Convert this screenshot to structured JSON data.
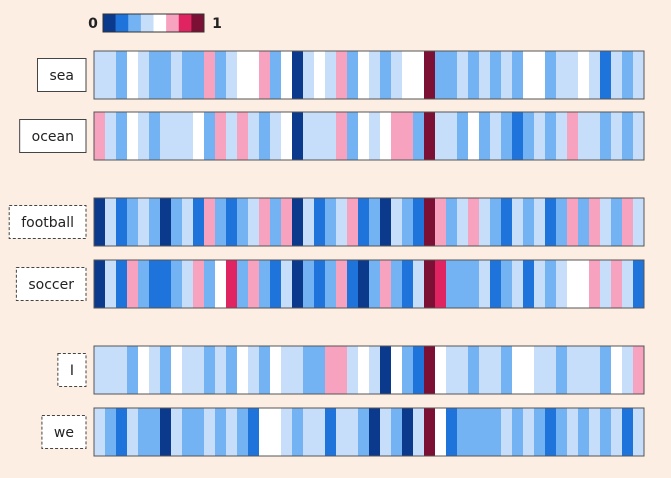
{
  "chart_data": {
    "type": "heatmap",
    "clim": [
      0,
      1
    ],
    "cticks": [
      0,
      1
    ],
    "colors": [
      "#0b3a8c",
      "#1f74dc",
      "#73b3f3",
      "#c6defa",
      "#ffffff",
      "#f7a3c0",
      "#e02462",
      "#7b1034"
    ],
    "series": [
      {
        "name": "sea",
        "values": [
          0.44,
          0.44,
          0.31,
          0.56,
          0.44,
          0.31,
          0.31,
          0.44,
          0.31,
          0.31,
          0.69,
          0.31,
          0.44,
          0.56,
          0.56,
          0.69,
          0.31,
          0.56,
          0.06,
          0.44,
          0.56,
          0.44,
          0.69,
          0.31,
          0.56,
          0.44,
          0.31,
          0.44,
          0.56,
          0.56,
          0.94,
          0.31,
          0.31,
          0.44,
          0.31,
          0.44,
          0.31,
          0.44,
          0.31,
          0.56,
          0.56,
          0.31,
          0.44,
          0.44,
          0.56,
          0.44,
          0.19,
          0.44,
          0.31,
          0.44
        ]
      },
      {
        "name": "ocean",
        "values": [
          0.69,
          0.44,
          0.31,
          0.56,
          0.44,
          0.31,
          0.44,
          0.44,
          0.44,
          0.56,
          0.31,
          0.69,
          0.44,
          0.69,
          0.44,
          0.31,
          0.44,
          0.56,
          0.06,
          0.44,
          0.44,
          0.44,
          0.69,
          0.31,
          0.56,
          0.44,
          0.56,
          0.69,
          0.69,
          0.31,
          0.94,
          0.44,
          0.44,
          0.31,
          0.56,
          0.31,
          0.44,
          0.31,
          0.19,
          0.31,
          0.44,
          0.31,
          0.44,
          0.69,
          0.44,
          0.44,
          0.31,
          0.44,
          0.31,
          0.44
        ]
      },
      {
        "name": "football",
        "values": [
          0.06,
          0.44,
          0.19,
          0.31,
          0.44,
          0.31,
          0.06,
          0.31,
          0.44,
          0.19,
          0.69,
          0.31,
          0.19,
          0.31,
          0.44,
          0.69,
          0.31,
          0.69,
          0.06,
          0.44,
          0.19,
          0.31,
          0.44,
          0.69,
          0.19,
          0.31,
          0.06,
          0.44,
          0.31,
          0.19,
          0.94,
          0.69,
          0.31,
          0.44,
          0.69,
          0.44,
          0.31,
          0.19,
          0.44,
          0.31,
          0.44,
          0.19,
          0.31,
          0.69,
          0.31,
          0.69,
          0.44,
          0.31,
          0.69,
          0.44
        ]
      },
      {
        "name": "soccer",
        "values": [
          0.06,
          0.44,
          0.19,
          0.69,
          0.31,
          0.19,
          0.19,
          0.31,
          0.44,
          0.69,
          0.31,
          0.56,
          0.81,
          0.31,
          0.69,
          0.31,
          0.19,
          0.44,
          0.06,
          0.31,
          0.19,
          0.31,
          0.69,
          0.19,
          0.06,
          0.31,
          0.69,
          0.31,
          0.19,
          0.44,
          0.94,
          0.81,
          0.31,
          0.31,
          0.31,
          0.44,
          0.19,
          0.31,
          0.44,
          0.19,
          0.44,
          0.31,
          0.44,
          0.56,
          0.56,
          0.69,
          0.44,
          0.69,
          0.44,
          0.19
        ]
      },
      {
        "name": "I",
        "values": [
          0.44,
          0.44,
          0.44,
          0.31,
          0.56,
          0.44,
          0.31,
          0.56,
          0.44,
          0.44,
          0.31,
          0.44,
          0.31,
          0.56,
          0.44,
          0.31,
          0.56,
          0.44,
          0.44,
          0.31,
          0.31,
          0.69,
          0.69,
          0.44,
          0.56,
          0.44,
          0.06,
          0.56,
          0.31,
          0.19,
          0.94,
          0.56,
          0.44,
          0.44,
          0.31,
          0.44,
          0.44,
          0.31,
          0.56,
          0.56,
          0.44,
          0.44,
          0.31,
          0.44,
          0.44,
          0.44,
          0.31,
          0.56,
          0.44,
          0.69
        ]
      },
      {
        "name": "we",
        "values": [
          0.44,
          0.31,
          0.19,
          0.44,
          0.31,
          0.31,
          0.06,
          0.44,
          0.31,
          0.31,
          0.44,
          0.31,
          0.44,
          0.31,
          0.19,
          0.56,
          0.56,
          0.44,
          0.31,
          0.44,
          0.44,
          0.19,
          0.44,
          0.44,
          0.31,
          0.06,
          0.44,
          0.31,
          0.06,
          0.44,
          0.94,
          0.56,
          0.19,
          0.31,
          0.31,
          0.31,
          0.31,
          0.44,
          0.31,
          0.44,
          0.31,
          0.19,
          0.31,
          0.44,
          0.31,
          0.44,
          0.31,
          0.44,
          0.19,
          0.44
        ]
      }
    ]
  }
}
